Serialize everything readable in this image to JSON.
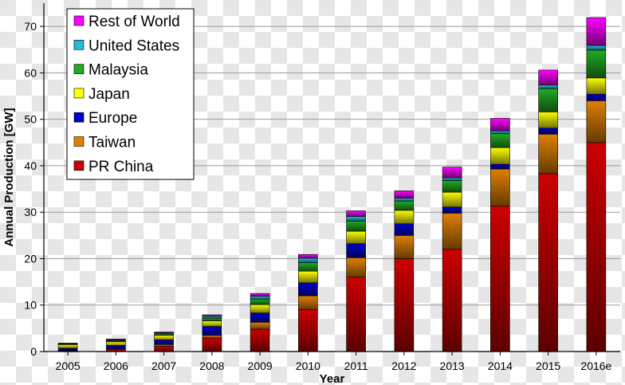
{
  "chart_data": {
    "type": "bar",
    "stacked": true,
    "categories": [
      "2005",
      "2006",
      "2007",
      "2008",
      "2009",
      "2010",
      "2011",
      "2012",
      "2013",
      "2014",
      "2015",
      "2016e"
    ],
    "series": [
      {
        "name": "PR China",
        "color": "#cc0000",
        "values": [
          0.1,
          0.4,
          1.1,
          2.9,
          4.8,
          9.0,
          16.0,
          20.0,
          22.0,
          31.3,
          38.3,
          45.0
        ]
      },
      {
        "name": "Taiwan",
        "color": "#e08000",
        "values": [
          0.1,
          0.2,
          0.4,
          0.6,
          1.5,
          3.0,
          4.2,
          5.0,
          7.8,
          8.0,
          8.5,
          9.0
        ]
      },
      {
        "name": "Europe",
        "color": "#0000cc",
        "values": [
          0.5,
          0.7,
          1.0,
          1.9,
          2.0,
          2.8,
          3.0,
          2.5,
          1.3,
          1.0,
          1.3,
          1.4
        ]
      },
      {
        "name": "Japan",
        "color": "#ffff00",
        "values": [
          0.8,
          0.8,
          1.0,
          1.2,
          1.8,
          2.5,
          2.7,
          2.9,
          3.2,
          3.6,
          3.5,
          3.5
        ]
      },
      {
        "name": "Malaysia",
        "color": "#22aa22",
        "values": [
          0.1,
          0.2,
          0.3,
          0.6,
          1.2,
          1.8,
          2.2,
          2.0,
          2.5,
          3.0,
          5.0,
          6.0
        ]
      },
      {
        "name": "United States",
        "color": "#22bbdd",
        "values": [
          0.1,
          0.2,
          0.2,
          0.4,
          0.6,
          1.0,
          1.0,
          0.6,
          0.6,
          0.6,
          0.8,
          1.0
        ]
      },
      {
        "name": "Rest of World",
        "color": "#ff00ff",
        "values": [
          0.1,
          0.2,
          0.2,
          0.3,
          0.6,
          0.8,
          1.2,
          1.6,
          2.3,
          2.7,
          3.2,
          6.0
        ]
      }
    ],
    "legend_order": [
      "Rest of World",
      "United States",
      "Malaysia",
      "Japan",
      "Europe",
      "Taiwan",
      "PR China"
    ],
    "title": "",
    "xlabel": "Year",
    "ylabel": "Annual Production [GW]",
    "ylim": [
      0,
      75
    ],
    "yticks": [
      0,
      10,
      20,
      30,
      40,
      50,
      60,
      70
    ],
    "grid": true,
    "legend_position": "top-left"
  }
}
